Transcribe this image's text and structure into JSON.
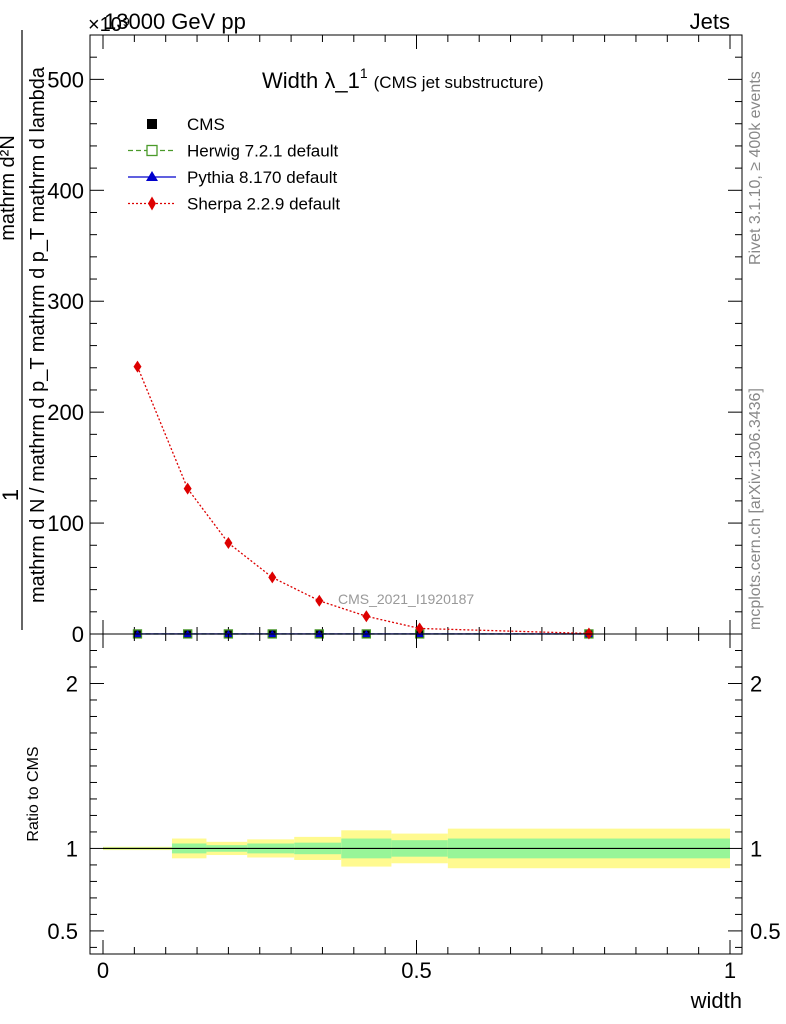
{
  "header": {
    "left": "13000 GeV pp",
    "right": "Jets",
    "exponent": "×10⁹"
  },
  "side_labels": {
    "rivet": "Rivet 3.1.10, ≥ 400k events",
    "mcplots": "mcplots.cern.ch [arXiv:1306.3436]"
  },
  "watermark": "CMS_2021_I1920187",
  "title": {
    "main": "Width λ_1",
    "sup": "1",
    "sub": "(CMS jet substructure)"
  },
  "y_label_top": {
    "numerator": "1",
    "denominator": "mathrm d N / mathrm d p_T mathrm d p_T mathrm d lambda",
    "numerator2": "mathrm d²N"
  },
  "y_label_bottom": "Ratio to CMS",
  "x_label": "width",
  "legend": [
    {
      "label": "CMS",
      "color": "#000000",
      "marker": "square"
    },
    {
      "label": "Herwig 7.2.1 default",
      "color": "#4a9a2a",
      "marker": "open-square",
      "dash": "dashed"
    },
    {
      "label": "Pythia 8.170 default",
      "color": "#0000cc",
      "marker": "triangle",
      "dash": "solid"
    },
    {
      "label": "Sherpa 2.2.9 default",
      "color": "#dd0000",
      "marker": "diamond",
      "dash": "dotted"
    }
  ],
  "chart_data": [
    {
      "type": "line",
      "panel": "main",
      "xlim": [
        0,
        1
      ],
      "ylim": [
        0,
        540
      ],
      "y_scale_exponent": 9,
      "y_ticks": [
        0,
        100,
        200,
        300,
        400,
        500
      ],
      "x": [
        0.055,
        0.135,
        0.2,
        0.27,
        0.345,
        0.42,
        0.505,
        0.775
      ],
      "series": [
        {
          "name": "CMS",
          "values": [
            0.05,
            0.05,
            0.05,
            0.05,
            0.05,
            0.05,
            0.05,
            0.05
          ]
        },
        {
          "name": "Herwig 7.2.1 default",
          "values": [
            0.05,
            0.05,
            0.05,
            0.05,
            0.05,
            0.05,
            0.05,
            0.05
          ]
        },
        {
          "name": "Pythia 8.170 default",
          "values": [
            0.05,
            0.05,
            0.05,
            0.05,
            0.05,
            0.05,
            0.05,
            0.05
          ]
        },
        {
          "name": "Sherpa 2.2.9 default",
          "values": [
            241,
            131,
            82,
            51,
            30,
            16,
            5,
            0.5
          ]
        }
      ]
    },
    {
      "type": "area",
      "panel": "ratio",
      "xlim": [
        0,
        1
      ],
      "ylim": [
        0.36,
        2.3
      ],
      "y_ticks": [
        0.5,
        1,
        2
      ],
      "x_ticks": [
        0,
        0.5,
        1
      ],
      "reference": 1.0,
      "bins": [
        {
          "x0": 0.0,
          "x1": 0.11,
          "stat": 0.005,
          "total": 0.01
        },
        {
          "x0": 0.11,
          "x1": 0.165,
          "stat": 0.03,
          "total": 0.06
        },
        {
          "x0": 0.165,
          "x1": 0.23,
          "stat": 0.02,
          "total": 0.04
        },
        {
          "x0": 0.23,
          "x1": 0.305,
          "stat": 0.03,
          "total": 0.055
        },
        {
          "x0": 0.305,
          "x1": 0.38,
          "stat": 0.035,
          "total": 0.07
        },
        {
          "x0": 0.38,
          "x1": 0.46,
          "stat": 0.06,
          "total": 0.11
        },
        {
          "x0": 0.46,
          "x1": 0.55,
          "stat": 0.05,
          "total": 0.09
        },
        {
          "x0": 0.55,
          "x1": 1.0,
          "stat": 0.06,
          "total": 0.12
        }
      ]
    }
  ]
}
